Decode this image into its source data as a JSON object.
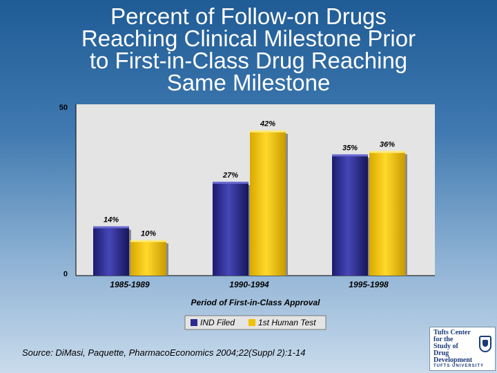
{
  "title_lines": [
    "Percent of Follow-on Drugs",
    "Reaching Clinical Milestone Prior",
    "to First-in-Class Drug Reaching",
    "Same Milestone"
  ],
  "chart_data": {
    "type": "bar",
    "title": "Percent of Follow-on Drugs Reaching Clinical Milestone Prior to First-in-Class Drug Reaching Same Milestone",
    "categories": [
      "1985-1989",
      "1990-1994",
      "1995-1998"
    ],
    "series": [
      {
        "name": "IND Filed",
        "values": [
          14,
          27,
          35
        ],
        "labels": [
          "14%",
          "27%",
          "35%"
        ],
        "color": "#2b2b8f"
      },
      {
        "name": "1st Human Test",
        "values": [
          10,
          42,
          36
        ],
        "labels": [
          "10%",
          "42%",
          "36%"
        ],
        "color": "#f2c200"
      }
    ],
    "xlabel": "Period of First-in-Class Approval",
    "ylabel": "",
    "ylim": [
      0,
      50
    ],
    "yticks": [
      "0",
      "50"
    ],
    "grid": false,
    "legend": "bottom-center"
  },
  "source": "Source: DiMasi, Paquette, PharmacoEconomics 2004;22(Suppl 2):1-14",
  "logo": {
    "lines": [
      "Tufts Center",
      "for the",
      "Study of",
      "Drug Development"
    ],
    "university": "TUFTS UNIVERSITY"
  }
}
